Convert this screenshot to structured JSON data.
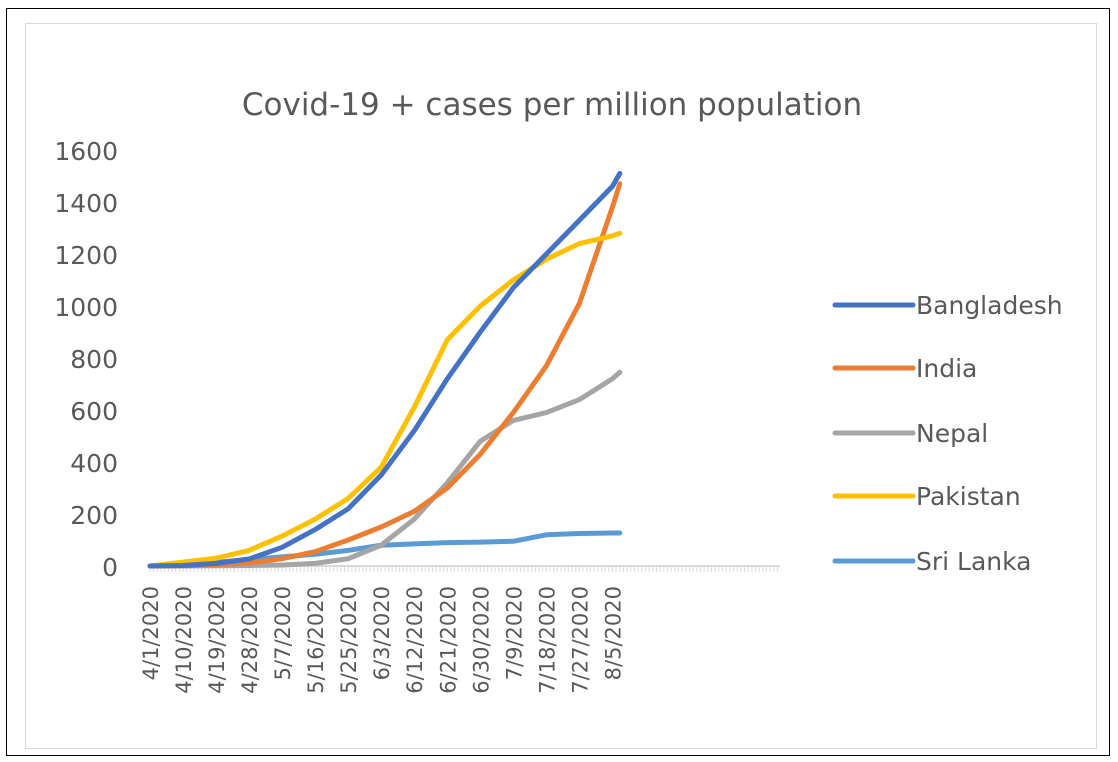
{
  "chart_data": {
    "type": "line",
    "title": "Covid-19 + cases per million population",
    "xlabel": "",
    "ylabel": "",
    "ylim": [
      0,
      1600
    ],
    "yticks": [
      0,
      200,
      400,
      600,
      800,
      1000,
      1200,
      1400,
      1600
    ],
    "xticks": [
      "4/1/2020",
      "4/10/2020",
      "4/19/2020",
      "4/28/2020",
      "5/7/2020",
      "5/16/2020",
      "5/25/2020",
      "6/3/2020",
      "6/12/2020",
      "6/21/2020",
      "6/30/2020",
      "7/9/2020",
      "7/18/2020",
      "7/27/2020",
      "8/5/2020"
    ],
    "grid": false,
    "legend_position": "right",
    "series": [
      {
        "name": "Bangladesh",
        "color": "#4472c4",
        "x": [
          "4/1/2020",
          "4/10/2020",
          "4/19/2020",
          "4/28/2020",
          "5/7/2020",
          "5/16/2020",
          "5/25/2020",
          "6/3/2020",
          "6/12/2020",
          "6/21/2020",
          "6/30/2020",
          "7/9/2020",
          "7/18/2020",
          "7/27/2020",
          "8/5/2020",
          "8/7/2020"
        ],
        "y": [
          0,
          2,
          10,
          27,
          72,
          140,
          220,
          350,
          520,
          720,
          900,
          1070,
          1200,
          1330,
          1460,
          1510
        ]
      },
      {
        "name": "India",
        "color": "#ed7d31",
        "x": [
          "4/1/2020",
          "4/10/2020",
          "4/19/2020",
          "4/28/2020",
          "5/7/2020",
          "5/16/2020",
          "5/25/2020",
          "6/3/2020",
          "6/12/2020",
          "6/21/2020",
          "6/30/2020",
          "7/9/2020",
          "7/18/2020",
          "7/27/2020",
          "8/5/2020",
          "8/7/2020"
        ],
        "y": [
          0,
          1,
          5,
          12,
          28,
          55,
          100,
          150,
          210,
          300,
          430,
          590,
          770,
          1010,
          1380,
          1470
        ]
      },
      {
        "name": "Nepal",
        "color": "#a5a5a5",
        "x": [
          "4/1/2020",
          "4/10/2020",
          "4/19/2020",
          "4/28/2020",
          "5/7/2020",
          "5/16/2020",
          "5/25/2020",
          "6/3/2020",
          "6/12/2020",
          "6/21/2020",
          "6/30/2020",
          "7/9/2020",
          "7/18/2020",
          "7/27/2020",
          "8/5/2020",
          "8/7/2020"
        ],
        "y": [
          0,
          0,
          1,
          2,
          4,
          10,
          28,
          80,
          180,
          320,
          480,
          560,
          590,
          640,
          720,
          745
        ]
      },
      {
        "name": "Pakistan",
        "color": "#ffc000",
        "x": [
          "4/1/2020",
          "4/10/2020",
          "4/19/2020",
          "4/28/2020",
          "5/7/2020",
          "5/16/2020",
          "5/25/2020",
          "6/3/2020",
          "6/12/2020",
          "6/21/2020",
          "6/30/2020",
          "7/9/2020",
          "7/18/2020",
          "7/27/2020",
          "8/5/2020",
          "8/7/2020"
        ],
        "y": [
          0,
          15,
          30,
          60,
          115,
          180,
          260,
          380,
          610,
          870,
          1000,
          1100,
          1180,
          1240,
          1270,
          1280
        ]
      },
      {
        "name": "Sri Lanka",
        "color": "#5b9bd5",
        "x": [
          "4/1/2020",
          "4/10/2020",
          "4/19/2020",
          "4/28/2020",
          "5/7/2020",
          "5/16/2020",
          "5/25/2020",
          "6/3/2020",
          "6/12/2020",
          "6/21/2020",
          "6/30/2020",
          "7/9/2020",
          "7/18/2020",
          "7/27/2020",
          "8/5/2020",
          "8/7/2020"
        ],
        "y": [
          0,
          8,
          14,
          25,
          35,
          45,
          60,
          80,
          85,
          90,
          92,
          95,
          120,
          125,
          127,
          127
        ]
      }
    ]
  }
}
